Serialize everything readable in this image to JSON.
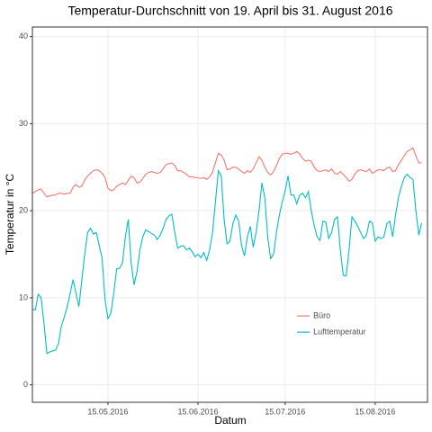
{
  "chart_data": {
    "type": "line",
    "title": "Temperatur-Durchschnitt von 19. April bis 31. August 2016",
    "x_label": "Datum",
    "y_label": "Temperatur in °C",
    "x": [
      "2016-04-19",
      "2016-04-20",
      "2016-04-21",
      "2016-04-22",
      "2016-04-23",
      "2016-04-24",
      "2016-04-25",
      "2016-04-26",
      "2016-04-27",
      "2016-04-28",
      "2016-04-29",
      "2016-04-30",
      "2016-05-01",
      "2016-05-02",
      "2016-05-03",
      "2016-05-04",
      "2016-05-05",
      "2016-05-06",
      "2016-05-07",
      "2016-05-08",
      "2016-05-09",
      "2016-05-10",
      "2016-05-11",
      "2016-05-12",
      "2016-05-13",
      "2016-05-14",
      "2016-05-15",
      "2016-05-16",
      "2016-05-17",
      "2016-05-18",
      "2016-05-19",
      "2016-05-20",
      "2016-05-21",
      "2016-05-22",
      "2016-05-23",
      "2016-05-24",
      "2016-05-25",
      "2016-05-26",
      "2016-05-27",
      "2016-05-28",
      "2016-05-29",
      "2016-05-30",
      "2016-05-31",
      "2016-06-01",
      "2016-06-02",
      "2016-06-03",
      "2016-06-04",
      "2016-06-05",
      "2016-06-06",
      "2016-06-07",
      "2016-06-08",
      "2016-06-09",
      "2016-06-10",
      "2016-06-11",
      "2016-06-12",
      "2016-06-13",
      "2016-06-14",
      "2016-06-15",
      "2016-06-16",
      "2016-06-17",
      "2016-06-18",
      "2016-06-19",
      "2016-06-20",
      "2016-06-21",
      "2016-06-22",
      "2016-06-23",
      "2016-06-24",
      "2016-06-25",
      "2016-06-26",
      "2016-06-27",
      "2016-06-28",
      "2016-06-29",
      "2016-06-30",
      "2016-07-01",
      "2016-07-02",
      "2016-07-03",
      "2016-07-04",
      "2016-07-05",
      "2016-07-06",
      "2016-07-07",
      "2016-07-08",
      "2016-07-09",
      "2016-07-10",
      "2016-07-11",
      "2016-07-12",
      "2016-07-13",
      "2016-07-14",
      "2016-07-15",
      "2016-07-16",
      "2016-07-17",
      "2016-07-18",
      "2016-07-19",
      "2016-07-20",
      "2016-07-21",
      "2016-07-22",
      "2016-07-23",
      "2016-07-24",
      "2016-07-25",
      "2016-07-26",
      "2016-07-27",
      "2016-07-28",
      "2016-07-29",
      "2016-07-30",
      "2016-07-31",
      "2016-08-01",
      "2016-08-02",
      "2016-08-03",
      "2016-08-04",
      "2016-08-05",
      "2016-08-06",
      "2016-08-07",
      "2016-08-08",
      "2016-08-09",
      "2016-08-10",
      "2016-08-11",
      "2016-08-12",
      "2016-08-13",
      "2016-08-14",
      "2016-08-15",
      "2016-08-16",
      "2016-08-17",
      "2016-08-18",
      "2016-08-19",
      "2016-08-20",
      "2016-08-21",
      "2016-08-22",
      "2016-08-23",
      "2016-08-24",
      "2016-08-25",
      "2016-08-26",
      "2016-08-27",
      "2016-08-28",
      "2016-08-29",
      "2016-08-30",
      "2016-08-31"
    ],
    "series": [
      {
        "name": "Büro",
        "color": "#f8766d",
        "values": [
          22.0,
          22.2,
          22.4,
          22.5,
          22.0,
          21.6,
          21.7,
          21.8,
          21.8,
          22.0,
          22.0,
          21.9,
          22.0,
          22.0,
          22.7,
          23.0,
          22.7,
          22.8,
          23.5,
          24.0,
          24.3,
          24.6,
          24.7,
          24.6,
          24.3,
          23.8,
          22.6,
          22.3,
          22.4,
          22.8,
          23.0,
          23.2,
          23.0,
          23.5,
          24.0,
          23.8,
          23.2,
          23.3,
          23.7,
          24.2,
          24.4,
          24.5,
          24.4,
          24.3,
          24.4,
          24.8,
          25.3,
          25.4,
          25.5,
          25.2,
          24.6,
          24.6,
          24.4,
          24.2,
          23.9,
          23.9,
          23.8,
          23.8,
          23.7,
          23.8,
          23.6,
          23.9,
          24.4,
          25.5,
          26.6,
          26.4,
          25.8,
          24.7,
          24.8,
          25.0,
          25.0,
          24.8,
          24.5,
          24.3,
          24.6,
          24.4,
          24.8,
          25.5,
          26.2,
          25.8,
          25.0,
          24.4,
          24.1,
          24.5,
          25.2,
          26.0,
          26.5,
          26.6,
          26.6,
          26.5,
          26.6,
          26.8,
          26.5,
          26.0,
          25.7,
          25.8,
          25.7,
          25.0,
          24.6,
          24.5,
          24.6,
          24.7,
          24.5,
          24.8,
          24.3,
          24.2,
          24.5,
          24.2,
          23.8,
          23.4,
          23.6,
          24.2,
          24.6,
          24.7,
          24.6,
          24.5,
          24.8,
          24.3,
          24.5,
          24.7,
          24.7,
          24.6,
          24.9,
          25.0,
          24.5,
          24.6,
          25.3,
          25.8,
          26.3,
          26.8,
          27.0,
          27.2,
          26.3,
          25.5,
          25.5
        ]
      },
      {
        "name": "Lufttemperatur",
        "color": "#00bfc4",
        "values": [
          8.7,
          8.6,
          10.4,
          10.0,
          7.0,
          3.6,
          3.8,
          3.9,
          4.0,
          4.8,
          6.8,
          7.8,
          9.0,
          10.5,
          12.1,
          10.5,
          9.0,
          12.0,
          15.0,
          17.5,
          18.0,
          17.3,
          17.5,
          16.0,
          14.5,
          9.8,
          7.6,
          8.2,
          10.5,
          13.3,
          13.4,
          14.0,
          17.0,
          19.0,
          14.0,
          11.5,
          13.0,
          15.5,
          17.0,
          17.8,
          17.6,
          17.4,
          17.2,
          16.7,
          17.2,
          18.0,
          19.0,
          19.4,
          19.6,
          17.5,
          15.7,
          15.9,
          16.0,
          15.5,
          15.7,
          15.3,
          14.7,
          15.0,
          14.6,
          15.2,
          14.3,
          15.5,
          17.5,
          21.0,
          24.6,
          24.0,
          19.0,
          16.2,
          16.5,
          18.5,
          19.5,
          18.8,
          16.0,
          14.8,
          17.0,
          18.2,
          15.8,
          17.5,
          20.0,
          23.2,
          21.5,
          17.0,
          14.5,
          15.0,
          17.5,
          19.5,
          21.0,
          22.3,
          24.0,
          21.8,
          21.8,
          20.8,
          21.8,
          22.0,
          21.5,
          22.2,
          20.0,
          18.3,
          17.0,
          16.6,
          18.8,
          18.7,
          16.8,
          17.5,
          19.0,
          19.3,
          15.5,
          12.6,
          12.5,
          15.5,
          19.3,
          18.8,
          18.2,
          17.5,
          16.8,
          17.2,
          18.8,
          18.6,
          16.5,
          17.0,
          16.8,
          17.0,
          18.5,
          18.8,
          17.0,
          19.5,
          21.5,
          22.8,
          23.8,
          24.2,
          23.8,
          23.6,
          20.0,
          17.2,
          18.6
        ]
      }
    ],
    "xlim": [
      "2016-04-19",
      "2016-09-02"
    ],
    "xticks": [
      {
        "value": "2016-05-15",
        "label": "15.05.2016"
      },
      {
        "value": "2016-06-15",
        "label": "15.06.2016"
      },
      {
        "value": "2016-07-15",
        "label": "15.07.2016"
      },
      {
        "value": "2016-08-15",
        "label": "15.08.2016"
      }
    ],
    "ylim": [
      -2,
      41.1
    ],
    "yticks": [
      0,
      10,
      20,
      30,
      40
    ],
    "grid": true,
    "legend_position": "bottom-right"
  }
}
